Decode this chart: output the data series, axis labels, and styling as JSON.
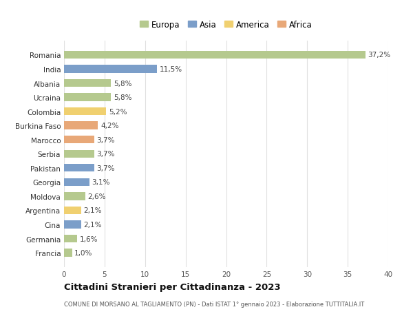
{
  "countries": [
    "Romania",
    "India",
    "Albania",
    "Ucraina",
    "Colombia",
    "Burkina Faso",
    "Marocco",
    "Serbia",
    "Pakistan",
    "Georgia",
    "Moldova",
    "Argentina",
    "Cina",
    "Germania",
    "Francia"
  ],
  "values": [
    37.2,
    11.5,
    5.8,
    5.8,
    5.2,
    4.2,
    3.7,
    3.7,
    3.7,
    3.1,
    2.6,
    2.1,
    2.1,
    1.6,
    1.0
  ],
  "labels": [
    "37,2%",
    "11,5%",
    "5,8%",
    "5,8%",
    "5,2%",
    "4,2%",
    "3,7%",
    "3,7%",
    "3,7%",
    "3,1%",
    "2,6%",
    "2,1%",
    "2,1%",
    "1,6%",
    "1,0%"
  ],
  "continents": [
    "Europa",
    "Asia",
    "Europa",
    "Europa",
    "America",
    "Africa",
    "Africa",
    "Europa",
    "Asia",
    "Asia",
    "Europa",
    "America",
    "Asia",
    "Europa",
    "Europa"
  ],
  "colors": {
    "Europa": "#b5c98e",
    "Asia": "#7b9ec9",
    "America": "#f0d070",
    "Africa": "#e8a878"
  },
  "legend_order": [
    "Europa",
    "Asia",
    "America",
    "Africa"
  ],
  "title": "Cittadini Stranieri per Cittadinanza - 2023",
  "subtitle": "COMUNE DI MORSANO AL TAGLIAMENTO (PN) - Dati ISTAT 1° gennaio 2023 - Elaborazione TUTTITALIA.IT",
  "xlim": [
    0,
    40
  ],
  "xticks": [
    0,
    5,
    10,
    15,
    20,
    25,
    30,
    35,
    40
  ],
  "background_color": "#ffffff",
  "grid_color": "#e0e0e0",
  "bar_height": 0.55,
  "label_fontsize": 7.5,
  "ytick_fontsize": 7.5,
  "xtick_fontsize": 7.5,
  "legend_fontsize": 8.5,
  "title_fontsize": 9.5,
  "subtitle_fontsize": 6.0
}
